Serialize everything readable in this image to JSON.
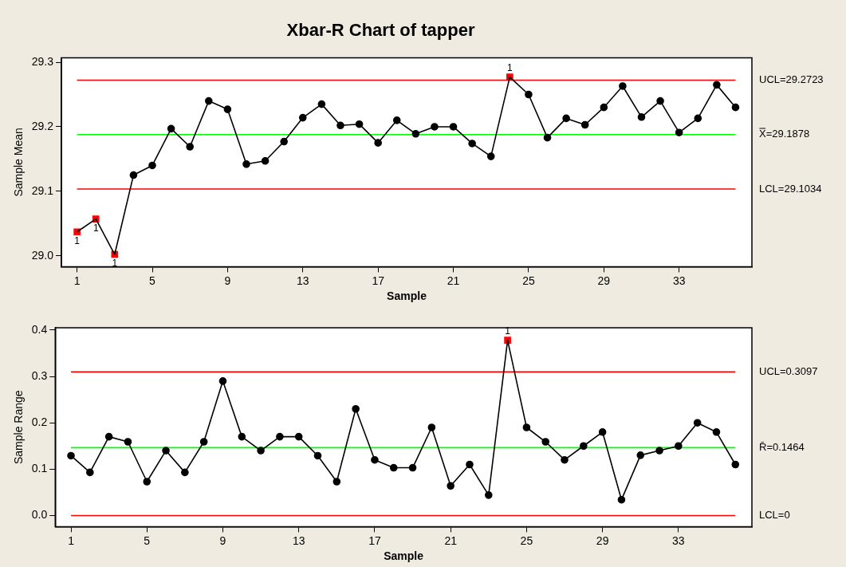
{
  "chart_data": [
    {
      "type": "line",
      "title": "Xbar-R Chart of tapper",
      "xlabel": "Sample",
      "ylabel": "Sample Mean",
      "x": [
        1,
        2,
        3,
        4,
        5,
        6,
        7,
        8,
        9,
        10,
        11,
        12,
        13,
        14,
        15,
        16,
        17,
        18,
        19,
        20,
        21,
        22,
        23,
        24,
        25,
        26,
        27,
        28,
        29,
        30,
        31,
        32,
        33,
        34,
        35,
        36
      ],
      "series": [
        {
          "color": "#000000",
          "marker": "none",
          "values": [
            29.037,
            29.057,
            29.002,
            29.125,
            29.14,
            29.197,
            29.169,
            29.24,
            29.227,
            29.142,
            29.147,
            29.177,
            29.214,
            29.235,
            29.202,
            29.204,
            29.175,
            29.21,
            29.189,
            29.2,
            29.2,
            29.174,
            29.154,
            29.277,
            29.25,
            29.183,
            29.213,
            29.203,
            29.23,
            29.263,
            29.215,
            29.24,
            29.191,
            29.213,
            29.265,
            29.23
          ]
        },
        {
          "type": "scatter",
          "color": "#000000",
          "marker": "circle",
          "x": [
            4,
            5,
            6,
            7,
            8,
            9,
            10,
            11,
            12,
            13,
            14,
            15,
            16,
            17,
            18,
            19,
            20,
            21,
            22,
            23,
            25,
            26,
            27,
            28,
            29,
            30,
            31,
            32,
            33,
            34,
            35,
            36
          ],
          "values": [
            29.125,
            29.14,
            29.197,
            29.169,
            29.24,
            29.227,
            29.142,
            29.147,
            29.177,
            29.214,
            29.235,
            29.202,
            29.204,
            29.175,
            29.21,
            29.189,
            29.2,
            29.2,
            29.174,
            29.154,
            29.25,
            29.183,
            29.213,
            29.203,
            29.23,
            29.263,
            29.215,
            29.24,
            29.191,
            29.213,
            29.265,
            29.23
          ]
        },
        {
          "type": "scatter",
          "color": "#ff0000",
          "marker": "square",
          "x": [
            1,
            2,
            3,
            24
          ],
          "values": [
            29.037,
            29.057,
            29.002,
            29.277
          ]
        }
      ],
      "xlim": [
        0.17,
        36.87
      ],
      "xticks": [
        1,
        5,
        9,
        13,
        17,
        21,
        25,
        29,
        33
      ],
      "ylim": [
        28.983,
        29.307
      ],
      "yticks": [
        {
          "value": 29.0,
          "label": "29.0"
        },
        29.1,
        29.2,
        29.3
      ],
      "ref_lines": [
        {
          "axis": "y",
          "value": 29.2723,
          "label": "UCL=29.2723",
          "color": "#ff0000"
        },
        {
          "axis": "y",
          "value": 29.1878,
          "label": "X̿=29.1878",
          "color": "#00ff00"
        },
        {
          "axis": "y",
          "value": 29.1034,
          "label": "LCL=29.1034",
          "color": "#ff0000"
        }
      ],
      "annotations": [
        {
          "text": "1",
          "x": 1,
          "y": 29.037
        },
        {
          "text": "1",
          "x": 2,
          "y": 29.057
        },
        {
          "text": "1",
          "x": 3,
          "y": 29.002
        },
        {
          "text": "1",
          "x": 24,
          "y": 29.277
        }
      ],
      "legend": false
    },
    {
      "type": "line",
      "xlabel": "Sample",
      "ylabel": "Sample Range",
      "x": [
        1,
        2,
        3,
        4,
        5,
        6,
        7,
        8,
        9,
        10,
        11,
        12,
        13,
        14,
        15,
        16,
        17,
        18,
        19,
        20,
        21,
        22,
        23,
        24,
        25,
        26,
        27,
        28,
        29,
        30,
        31,
        32,
        33,
        34,
        35,
        36
      ],
      "series": [
        {
          "color": "#000000",
          "marker": "none",
          "values": [
            0.129,
            0.093,
            0.17,
            0.159,
            0.073,
            0.14,
            0.093,
            0.159,
            0.29,
            0.17,
            0.14,
            0.17,
            0.17,
            0.129,
            0.073,
            0.23,
            0.12,
            0.103,
            0.103,
            0.19,
            0.064,
            0.11,
            0.044,
            0.378,
            0.19,
            0.159,
            0.12,
            0.15,
            0.18,
            0.034,
            0.13,
            0.14,
            0.15,
            0.2,
            0.18,
            0.11
          ]
        },
        {
          "type": "scatter",
          "color": "#000000",
          "marker": "circle",
          "x": [
            1,
            2,
            3,
            4,
            5,
            6,
            7,
            8,
            9,
            10,
            11,
            12,
            13,
            14,
            15,
            16,
            17,
            18,
            19,
            20,
            21,
            22,
            23,
            25,
            26,
            27,
            28,
            29,
            30,
            31,
            32,
            33,
            34,
            35,
            36
          ],
          "values": [
            0.129,
            0.093,
            0.17,
            0.159,
            0.073,
            0.14,
            0.093,
            0.159,
            0.29,
            0.17,
            0.14,
            0.17,
            0.17,
            0.129,
            0.073,
            0.23,
            0.12,
            0.103,
            0.103,
            0.19,
            0.064,
            0.11,
            0.044,
            0.19,
            0.159,
            0.12,
            0.15,
            0.18,
            0.034,
            0.13,
            0.14,
            0.15,
            0.2,
            0.18,
            0.11
          ]
        },
        {
          "type": "scatter",
          "color": "#ff0000",
          "marker": "square",
          "x": [
            24
          ],
          "values": [
            0.378
          ]
        }
      ],
      "xlim": [
        0.17,
        36.87
      ],
      "xticks": [
        1,
        5,
        9,
        13,
        17,
        21,
        25,
        29,
        33
      ],
      "ylim": [
        -0.024,
        0.405
      ],
      "yticks": [
        {
          "value": 0,
          "label": "0.0"
        },
        0.1,
        0.2,
        0.3,
        0.4
      ],
      "ref_lines": [
        {
          "axis": "y",
          "value": 0.3097,
          "label": "UCL=0.3097",
          "color": "#ff0000"
        },
        {
          "axis": "y",
          "value": 0.1464,
          "label": "R̄=0.1464",
          "color": "#00ff00"
        },
        {
          "axis": "y",
          "value": 0,
          "label": "LCL=0",
          "color": "#ff0000"
        }
      ],
      "annotations": [
        {
          "text": "1",
          "x": 24,
          "y": 0.378
        }
      ],
      "legend": false
    }
  ]
}
